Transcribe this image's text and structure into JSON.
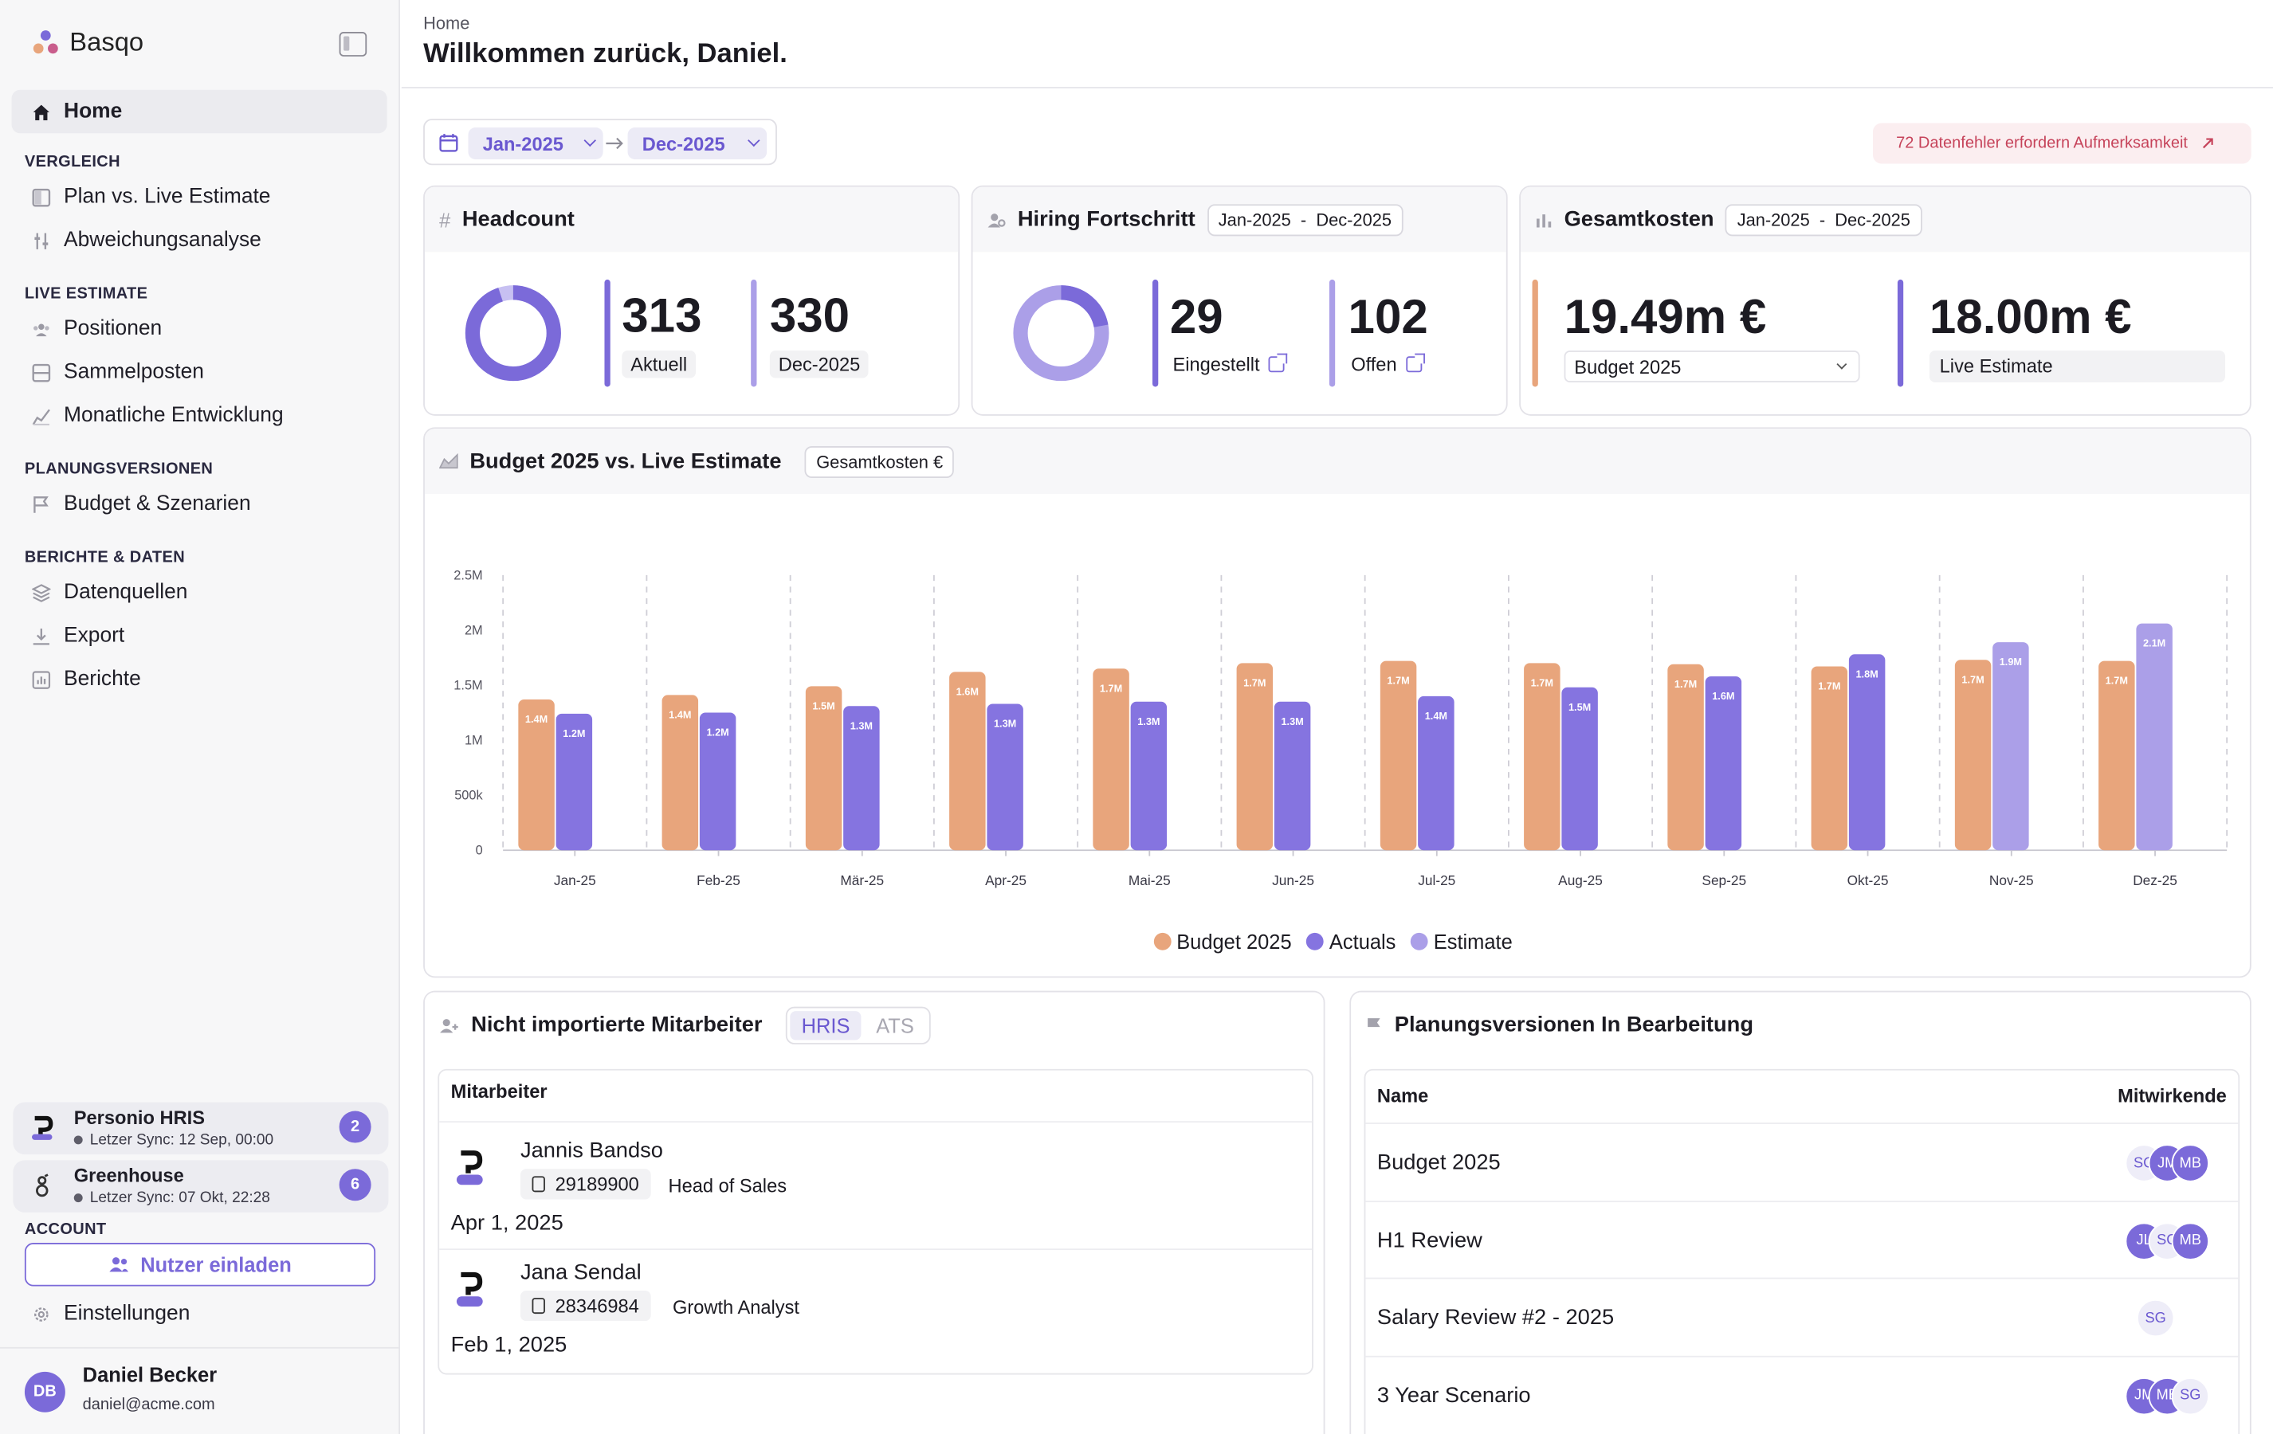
{
  "app": {
    "name": "Basqo"
  },
  "header": {
    "breadcrumb": "Home",
    "title": "Willkommen zurück, Daniel."
  },
  "sidebar": {
    "home": "Home",
    "sections": {
      "vergleich": "VERGLEICH",
      "live": "LIVE ESTIMATE",
      "planung": "PLANUNGSVERSIONEN",
      "berichte": "BERICHTE & DATEN",
      "account": "ACCOUNT"
    },
    "items": {
      "plan_vs_live": "Plan vs. Live Estimate",
      "abweichung": "Abweichungsanalyse",
      "positionen": "Positionen",
      "sammelposten": "Sammelposten",
      "monatlich": "Monatliche Entwicklung",
      "budget_szenarien": "Budget & Szenarien",
      "datenquellen": "Datenquellen",
      "export": "Export",
      "berichte": "Berichte"
    },
    "integrations": [
      {
        "name": "Personio HRIS",
        "sync": "Letzer Sync: 12 Sep, 00:00",
        "count": "2"
      },
      {
        "name": "Greenhouse",
        "sync": "Letzer Sync: 07 Okt, 22:28",
        "count": "6"
      }
    ],
    "invite": "Nutzer einladen",
    "settings": "Einstellungen",
    "user": {
      "initials": "DB",
      "name": "Daniel Becker",
      "email": "daniel@acme.com"
    }
  },
  "filters": {
    "from": "Jan-2025",
    "to": "Dec-2025",
    "alert": "72 Datenfehler erfordern Aufmerksamkeit"
  },
  "headcount": {
    "title": "Headcount",
    "current": "313",
    "current_label": "Aktuell",
    "target": "330",
    "target_label": "Dec-2025",
    "ratio": 0.948
  },
  "hiring": {
    "title": "Hiring Fortschritt",
    "range_from": "Jan-2025",
    "range_to": "Dec-2025",
    "hired": "29",
    "hired_label": "Eingestellt",
    "open": "102",
    "open_label": "Offen",
    "ratio": 0.221
  },
  "costs": {
    "title": "Gesamtkosten",
    "range_from": "Jan-2025",
    "range_to": "Dec-2025",
    "budget": "19.49m €",
    "budget_label": "Budget 2025",
    "estimate": "18.00m €",
    "estimate_label": "Live Estimate"
  },
  "chart": {
    "title": "Budget 2025 vs. Live Estimate",
    "tag": "Gesamtkosten €"
  },
  "chart_data": {
    "type": "bar",
    "categories": [
      "Jan-25",
      "Feb-25",
      "Mär-25",
      "Apr-25",
      "Mai-25",
      "Jun-25",
      "Jul-25",
      "Aug-25",
      "Sep-25",
      "Okt-25",
      "Nov-25",
      "Dez-25"
    ],
    "yticks": [
      "0",
      "500k",
      "1M",
      "1.5M",
      "2M",
      "2.5M"
    ],
    "ylim": [
      0,
      2500000
    ],
    "series": [
      {
        "name": "Budget 2025",
        "color": "#e8a57c",
        "values": [
          1.37,
          1.41,
          1.49,
          1.62,
          1.65,
          1.7,
          1.72,
          1.7,
          1.69,
          1.67,
          1.73,
          1.72
        ],
        "labels": [
          "1.4M",
          "1.4M",
          "1.5M",
          "1.6M",
          "1.7M",
          "1.7M",
          "1.7M",
          "1.7M",
          "1.7M",
          "1.7M",
          "1.7M",
          "1.7M"
        ]
      },
      {
        "name": "Actuals",
        "color": "#8574e0",
        "values": [
          1.24,
          1.25,
          1.31,
          1.33,
          1.35,
          1.35,
          1.4,
          1.48,
          1.58,
          1.78,
          null,
          null
        ],
        "labels": [
          "1.2M",
          "1.2M",
          "1.3M",
          "1.3M",
          "1.3M",
          "1.3M",
          "1.4M",
          "1.5M",
          "1.6M",
          "1.8M",
          "",
          ""
        ]
      },
      {
        "name": "Estimate",
        "color": "#ab9fe8",
        "values": [
          null,
          null,
          null,
          null,
          null,
          null,
          null,
          null,
          null,
          null,
          1.89,
          2.06
        ],
        "labels": [
          "",
          "",
          "",
          "",
          "",
          "",
          "",
          "",
          "",
          "",
          "1.9M",
          "2.1M"
        ]
      }
    ],
    "grid": "vertical-dashed",
    "legend": "bottom"
  },
  "employees": {
    "title": "Nicht importierte Mitarbeiter",
    "tabs": [
      "HRIS",
      "ATS"
    ],
    "column": "Mitarbeiter",
    "rows": [
      {
        "name": "Jannis Bandso",
        "id": "29189900",
        "role": "Head of Sales",
        "date": "Apr 1, 2025"
      },
      {
        "name": "Jana Sendal",
        "id": "28346984",
        "role": "Growth Analyst",
        "date": "Feb 1, 2025"
      }
    ],
    "logo_text": "HRIS"
  },
  "plans": {
    "title": "Planungsversionen In Bearbeitung",
    "col_name": "Name",
    "col_contrib": "Mitwirkende",
    "rows": [
      {
        "name": "Budget 2025",
        "avatars": [
          {
            "i": "SG",
            "s": "l"
          },
          {
            "i": "JM",
            "s": "p"
          },
          {
            "i": "MB",
            "s": "p"
          }
        ]
      },
      {
        "name": "H1 Review",
        "avatars": [
          {
            "i": "JL",
            "s": "p"
          },
          {
            "i": "SG",
            "s": "l"
          },
          {
            "i": "MB",
            "s": "p"
          }
        ]
      },
      {
        "name": "Salary Review #2 - 2025",
        "avatars": [
          {
            "i": "SG",
            "s": "l"
          }
        ]
      },
      {
        "name": "3 Year Scenario",
        "avatars": [
          {
            "i": "JM",
            "s": "p"
          },
          {
            "i": "MB",
            "s": "p"
          },
          {
            "i": "SG",
            "s": "l"
          }
        ]
      }
    ]
  }
}
